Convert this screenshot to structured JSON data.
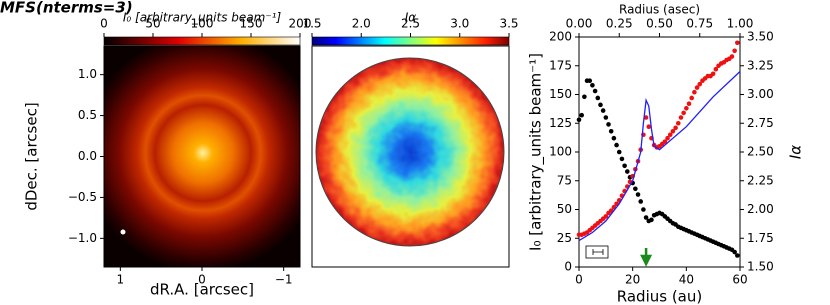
{
  "figure_title": "MFS(nterms=3)",
  "chart_data": [
    {
      "type": "image",
      "xlabel": "dR.A. [arcsec]",
      "ylabel": "dDec. [arcsec]",
      "xlim": [
        1.2,
        -1.2
      ],
      "ylim": [
        -1.35,
        1.35
      ],
      "xticks": [
        1,
        0,
        {
          "value": -1,
          "label": "−1"
        }
      ],
      "yticks": [
        {
          "value": -1,
          "label": "−1.0"
        },
        {
          "value": -0.5,
          "label": "−0.5"
        },
        {
          "value": 0,
          "label": "0.0"
        },
        0.5,
        {
          "value": 1,
          "label": "1.0"
        }
      ],
      "colorbar": {
        "label": "I₀ [arbitrary_units beam⁻¹]",
        "lim": [
          0,
          200
        ],
        "ticks": [
          0,
          50,
          100,
          150,
          200
        ],
        "colormap": "hot"
      }
    },
    {
      "type": "image",
      "colorbar": {
        "label": "Iα",
        "lim": [
          1.5,
          3.5
        ],
        "ticks": [
          1.5,
          {
            "value": 2,
            "label": "2.0"
          },
          2.5,
          {
            "value": 3,
            "label": "3.0"
          },
          3.5
        ],
        "colormap": "jet"
      }
    },
    {
      "type": "scatter",
      "xlabel": "Radius (au)",
      "x2label": "Radius (asec)",
      "ylabel": "I₀ [arbitrary_units beam⁻¹]",
      "y2label": "Iα",
      "xlim": [
        0,
        60
      ],
      "xticks": [
        0,
        20,
        40,
        60
      ],
      "x2lim": [
        0,
        1
      ],
      "x2ticks": [
        {
          "value": 0,
          "label": "0.00"
        },
        0.25,
        {
          "value": 0.5,
          "label": "0.50"
        },
        0.75,
        {
          "value": 1,
          "label": "1.00"
        }
      ],
      "ylim": [
        0,
        200
      ],
      "yticks": [
        0,
        25,
        50,
        75,
        100,
        125,
        150,
        175,
        200
      ],
      "y2lim": [
        1.5,
        3.5
      ],
      "y2ticks": [
        {
          "value": 1.5,
          "label": "1.50"
        },
        1.75,
        {
          "value": 2,
          "label": "2.00"
        },
        2.25,
        {
          "value": 2.5,
          "label": "2.50"
        },
        2.75,
        {
          "value": 3,
          "label": "3.00"
        },
        3.25,
        {
          "value": 3.5,
          "label": "3.50"
        }
      ],
      "arrow_x": 25,
      "arrow_color": "#1a8a1a",
      "series": [
        {
          "color": "#000000",
          "style": "dots",
          "x": [
            0,
            1,
            2,
            3,
            4,
            5,
            6,
            7,
            8,
            9,
            10,
            11,
            12,
            13,
            14,
            15,
            16,
            17,
            18,
            19,
            20,
            21,
            22,
            23,
            24,
            25,
            26,
            27,
            28,
            29,
            30,
            31,
            32,
            33,
            34,
            35,
            36,
            37,
            38,
            39,
            40,
            41,
            42,
            43,
            44,
            45,
            46,
            47,
            48,
            49,
            50,
            51,
            52,
            53,
            54,
            55,
            56,
            57,
            58,
            59
          ],
          "values": [
            128,
            132,
            148,
            162,
            162,
            158,
            153,
            147,
            141,
            136,
            130,
            124,
            118,
            112,
            106,
            100,
            94,
            88,
            83,
            78,
            73,
            68,
            63,
            57,
            50,
            43,
            40,
            41,
            45,
            46,
            47,
            46,
            44,
            42,
            40,
            38,
            37,
            35,
            34,
            33,
            32,
            31,
            30,
            29,
            28,
            27,
            26,
            25,
            24,
            23,
            22,
            21,
            20,
            19,
            18,
            17,
            16,
            15,
            13,
            10
          ]
        },
        {
          "color": "#ee1111",
          "style": "dots",
          "axis": "y2",
          "x": [
            0,
            1,
            2,
            3,
            4,
            5,
            6,
            7,
            8,
            9,
            10,
            11,
            12,
            13,
            14,
            15,
            16,
            17,
            18,
            19,
            20,
            21,
            22,
            23,
            24,
            25,
            26,
            27,
            28,
            29,
            30,
            31,
            32,
            33,
            34,
            35,
            36,
            37,
            38,
            39,
            40,
            41,
            42,
            43,
            44,
            45,
            46,
            47,
            48,
            49,
            50,
            51,
            52,
            53,
            54,
            55,
            56,
            57,
            58,
            59
          ],
          "values": [
            1.78,
            1.78,
            1.79,
            1.8,
            1.82,
            1.84,
            1.86,
            1.88,
            1.9,
            1.92,
            1.94,
            1.97,
            1.99,
            2.02,
            2.05,
            2.08,
            2.12,
            2.16,
            2.2,
            2.24,
            2.29,
            2.35,
            2.42,
            2.52,
            2.65,
            2.8,
            2.72,
            2.62,
            2.56,
            2.54,
            2.55,
            2.57,
            2.59,
            2.62,
            2.65,
            2.68,
            2.71,
            2.75,
            2.8,
            2.84,
            2.88,
            2.92,
            2.97,
            3.02,
            3.06,
            3.09,
            3.12,
            3.14,
            3.16,
            3.16,
            3.18,
            3.22,
            3.25,
            3.27,
            3.28,
            3.3,
            3.31,
            3.33,
            3.38,
            3.45
          ]
        },
        {
          "color": "#1f1fff",
          "style": "line",
          "axis": "y2",
          "x": [
            0,
            5,
            10,
            15,
            20,
            23,
            24,
            25,
            26,
            27,
            28,
            30,
            40,
            50,
            60
          ],
          "values": [
            1.73,
            1.8,
            1.9,
            2.05,
            2.25,
            2.5,
            2.75,
            2.95,
            2.9,
            2.7,
            2.55,
            2.52,
            2.72,
            2.98,
            3.2
          ]
        }
      ]
    }
  ]
}
